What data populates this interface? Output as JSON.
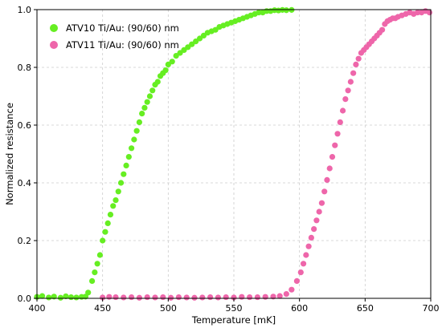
{
  "chart_data": {
    "type": "scatter",
    "title": "",
    "xlabel": "Temperature [mK]",
    "ylabel": "Normalized resistance",
    "xlim": [
      400,
      700
    ],
    "ylim": [
      0,
      1.0
    ],
    "xticks": [
      400,
      450,
      500,
      550,
      600,
      650,
      700
    ],
    "yticks": [
      0.0,
      0.2,
      0.4,
      0.6,
      0.8,
      1.0
    ],
    "xtick_labels": [
      "400",
      "450",
      "500",
      "550",
      "600",
      "650",
      "700"
    ],
    "ytick_labels": [
      "0.0",
      "0.2",
      "0.4",
      "0.6",
      "0.8",
      "1.0"
    ],
    "grid": true,
    "legend_position": "top-left",
    "series": [
      {
        "name": "ATV10 Ti/Au: (90/60) nm",
        "color": "#66ee22",
        "points": [
          [
            400,
            0.005
          ],
          [
            404,
            0.008
          ],
          [
            409,
            0.003
          ],
          [
            413,
            0.006
          ],
          [
            418,
            0.002
          ],
          [
            422,
            0.007
          ],
          [
            426,
            0.004
          ],
          [
            430,
            0.003
          ],
          [
            434,
            0.005
          ],
          [
            437,
            0.006
          ],
          [
            439,
            0.02
          ],
          [
            442,
            0.06
          ],
          [
            444,
            0.09
          ],
          [
            446,
            0.12
          ],
          [
            448,
            0.15
          ],
          [
            450,
            0.2
          ],
          [
            452,
            0.23
          ],
          [
            454,
            0.26
          ],
          [
            456,
            0.29
          ],
          [
            458,
            0.32
          ],
          [
            460,
            0.34
          ],
          [
            462,
            0.37
          ],
          [
            464,
            0.4
          ],
          [
            466,
            0.43
          ],
          [
            468,
            0.46
          ],
          [
            470,
            0.49
          ],
          [
            472,
            0.52
          ],
          [
            474,
            0.55
          ],
          [
            476,
            0.58
          ],
          [
            478,
            0.61
          ],
          [
            480,
            0.64
          ],
          [
            482,
            0.66
          ],
          [
            484,
            0.68
          ],
          [
            486,
            0.7
          ],
          [
            488,
            0.72
          ],
          [
            490,
            0.74
          ],
          [
            492,
            0.75
          ],
          [
            494,
            0.77
          ],
          [
            496,
            0.78
          ],
          [
            498,
            0.79
          ],
          [
            500,
            0.81
          ],
          [
            503,
            0.82
          ],
          [
            506,
            0.84
          ],
          [
            509,
            0.85
          ],
          [
            512,
            0.86
          ],
          [
            515,
            0.87
          ],
          [
            518,
            0.88
          ],
          [
            521,
            0.89
          ],
          [
            524,
            0.9
          ],
          [
            527,
            0.91
          ],
          [
            530,
            0.92
          ],
          [
            533,
            0.925
          ],
          [
            536,
            0.93
          ],
          [
            539,
            0.94
          ],
          [
            542,
            0.945
          ],
          [
            545,
            0.95
          ],
          [
            548,
            0.955
          ],
          [
            551,
            0.96
          ],
          [
            554,
            0.965
          ],
          [
            557,
            0.97
          ],
          [
            560,
            0.975
          ],
          [
            563,
            0.98
          ],
          [
            566,
            0.985
          ],
          [
            569,
            0.99
          ],
          [
            572,
            0.99
          ],
          [
            575,
            0.995
          ],
          [
            578,
            0.995
          ],
          [
            581,
            0.998
          ],
          [
            584,
            0.997
          ],
          [
            587,
            0.999
          ],
          [
            590,
            0.998
          ],
          [
            594,
            0.999
          ]
        ]
      },
      {
        "name": "ATV11 Ti/Au: (90/60) nm",
        "color": "#ee66aa",
        "points": [
          [
            450,
            0.003
          ],
          [
            455,
            0.005
          ],
          [
            460,
            0.004
          ],
          [
            466,
            0.003
          ],
          [
            472,
            0.004
          ],
          [
            478,
            0.002
          ],
          [
            484,
            0.004
          ],
          [
            490,
            0.003
          ],
          [
            496,
            0.004
          ],
          [
            502,
            0.002
          ],
          [
            508,
            0.004
          ],
          [
            514,
            0.003
          ],
          [
            520,
            0.002
          ],
          [
            526,
            0.003
          ],
          [
            532,
            0.004
          ],
          [
            538,
            0.003
          ],
          [
            544,
            0.004
          ],
          [
            550,
            0.003
          ],
          [
            556,
            0.005
          ],
          [
            562,
            0.004
          ],
          [
            568,
            0.004
          ],
          [
            574,
            0.005
          ],
          [
            580,
            0.006
          ],
          [
            585,
            0.008
          ],
          [
            590,
            0.015
          ],
          [
            594,
            0.03
          ],
          [
            598,
            0.06
          ],
          [
            601,
            0.09
          ],
          [
            603,
            0.12
          ],
          [
            605,
            0.15
          ],
          [
            607,
            0.18
          ],
          [
            609,
            0.21
          ],
          [
            611,
            0.24
          ],
          [
            613,
            0.27
          ],
          [
            615,
            0.3
          ],
          [
            617,
            0.33
          ],
          [
            619,
            0.37
          ],
          [
            621,
            0.41
          ],
          [
            623,
            0.45
          ],
          [
            625,
            0.49
          ],
          [
            627,
            0.53
          ],
          [
            629,
            0.57
          ],
          [
            631,
            0.61
          ],
          [
            633,
            0.65
          ],
          [
            635,
            0.69
          ],
          [
            637,
            0.72
          ],
          [
            639,
            0.75
          ],
          [
            641,
            0.78
          ],
          [
            643,
            0.81
          ],
          [
            645,
            0.83
          ],
          [
            647,
            0.85
          ],
          [
            649,
            0.86
          ],
          [
            651,
            0.87
          ],
          [
            653,
            0.88
          ],
          [
            655,
            0.89
          ],
          [
            657,
            0.9
          ],
          [
            659,
            0.91
          ],
          [
            661,
            0.92
          ],
          [
            663,
            0.93
          ],
          [
            665,
            0.95
          ],
          [
            667,
            0.96
          ],
          [
            669,
            0.965
          ],
          [
            671,
            0.97
          ],
          [
            673,
            0.97
          ],
          [
            675,
            0.975
          ],
          [
            678,
            0.98
          ],
          [
            681,
            0.985
          ],
          [
            684,
            0.99
          ],
          [
            687,
            0.985
          ],
          [
            690,
            0.99
          ],
          [
            693,
            0.99
          ],
          [
            696,
            0.995
          ],
          [
            699,
            0.99
          ]
        ]
      }
    ]
  }
}
